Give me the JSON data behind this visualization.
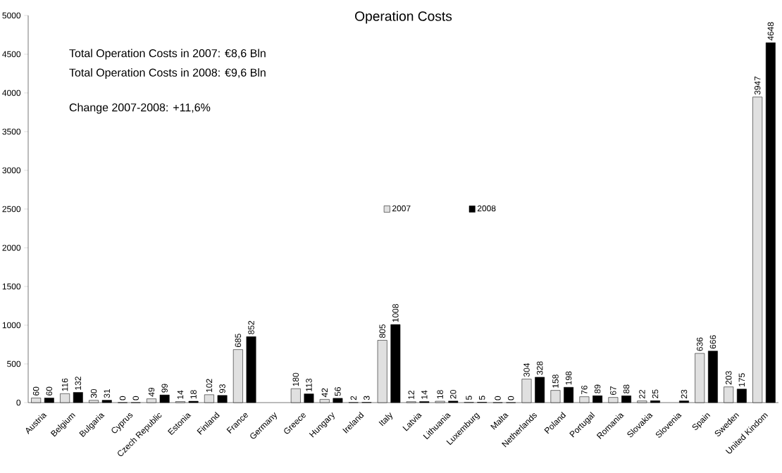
{
  "chart_data": {
    "type": "bar",
    "title": "Operation Costs",
    "categories": [
      "Austria",
      "Belgium",
      "Bulgaria",
      "Cyprus",
      "Czech Republic",
      "Estonia",
      "Finland",
      "France",
      "Germany",
      "Greece",
      "Hungary",
      "Ireland",
      "Italy",
      "Latvia",
      "Lithuania",
      "Luxemburg",
      "Malta",
      "Netherlands",
      "Poland",
      "Portugal",
      "Romania",
      "Slovakia",
      "Slovenia",
      "Spain",
      "Sweden",
      "United Kindom"
    ],
    "series": [
      {
        "name": "2007",
        "color": "#e0e0e0",
        "values": [
          60,
          116,
          30,
          0,
          49,
          14,
          102,
          685,
          null,
          180,
          42,
          2,
          805,
          12,
          18,
          5,
          0,
          304,
          158,
          76,
          67,
          22,
          null,
          636,
          203,
          3947
        ]
      },
      {
        "name": "2008",
        "color": "#000000",
        "values": [
          60,
          132,
          31,
          0,
          99,
          18,
          93,
          852,
          null,
          113,
          56,
          3,
          1008,
          14,
          20,
          5,
          0,
          328,
          198,
          89,
          88,
          25,
          23,
          666,
          175,
          4648
        ]
      }
    ],
    "ylim": [
      0,
      5000
    ],
    "yticks": [
      0,
      500,
      1000,
      1500,
      2000,
      2500,
      3000,
      3500,
      4000,
      4500,
      5000
    ],
    "data_labels": true,
    "legend": "center",
    "grid": false,
    "annotations": [
      "Total Operation Costs in 2007: €8,6 Bln",
      "Total Operation Costs in 2008: €9,6 Bln",
      "Change 2007-2008: +11,6%"
    ]
  }
}
